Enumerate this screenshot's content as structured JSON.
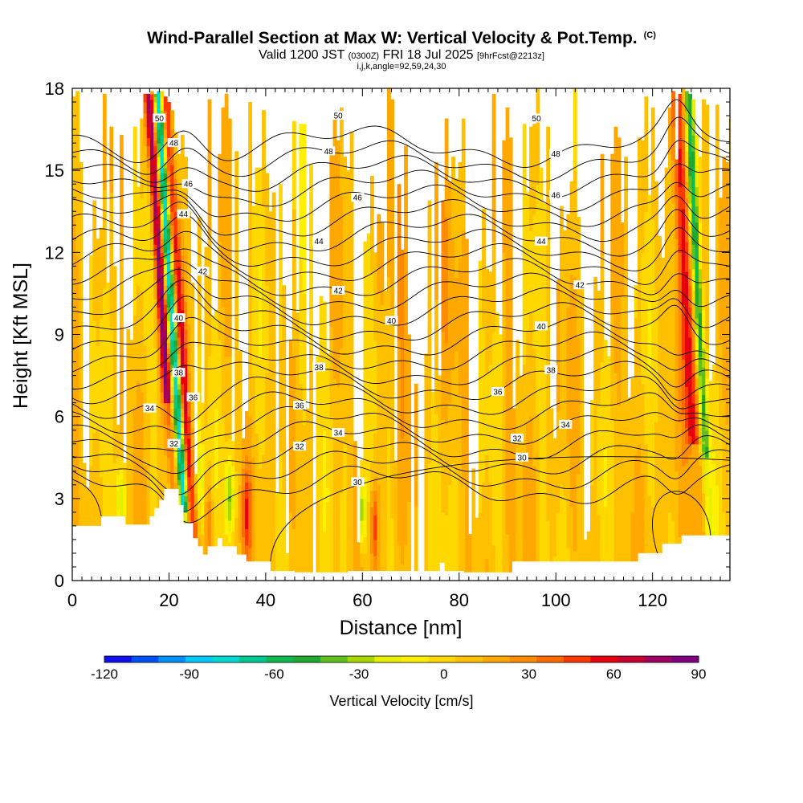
{
  "title": {
    "main": "Wind-Parallel Section at Max W: Vertical Velocity & Pot.Temp.",
    "mark": "(C)",
    "valid_prefix": "Valid 1200 JST",
    "valid_utc": "(0300Z)",
    "valid_date": "FRI 18 Jul 2025",
    "forecast": "[9hrFcst@2213z]",
    "params": "i,j,k,angle=92,59,24,30"
  },
  "chart_data": {
    "type": "heatmap",
    "xlabel": "Distance [nm]",
    "ylabel": "Height [Kft MSL]",
    "xlim": [
      0,
      136
    ],
    "ylim": [
      0,
      18
    ],
    "x_ticks": [
      0,
      20,
      40,
      60,
      80,
      100,
      120
    ],
    "y_ticks": [
      0,
      3,
      6,
      9,
      12,
      15,
      18
    ],
    "colorbar": {
      "label": "Vertical Velocity [cm/s]",
      "tick_labels": [
        -120,
        -90,
        -60,
        -30,
        0,
        30,
        60,
        90
      ],
      "range": [
        -120,
        90
      ],
      "colors": [
        "#1010f0",
        "#0050f8",
        "#0090f8",
        "#00c8f8",
        "#00d8d0",
        "#00c890",
        "#10b850",
        "#20a830",
        "#60c020",
        "#a8d800",
        "#e8f000",
        "#fff000",
        "#ffd800",
        "#ffc000",
        "#ffa800",
        "#ff8c00",
        "#ff6a00",
        "#ff3800",
        "#e80010",
        "#c80030",
        "#a00060",
        "#800080"
      ]
    },
    "theta_labels": [
      {
        "x": 18,
        "y": 16.9,
        "text": "50"
      },
      {
        "x": 55,
        "y": 17.0,
        "text": "50"
      },
      {
        "x": 96,
        "y": 16.9,
        "text": "50"
      },
      {
        "x": 21,
        "y": 16.0,
        "text": "48"
      },
      {
        "x": 53,
        "y": 15.7,
        "text": "48"
      },
      {
        "x": 100,
        "y": 15.6,
        "text": "48"
      },
      {
        "x": 24,
        "y": 14.5,
        "text": "46"
      },
      {
        "x": 59,
        "y": 14.0,
        "text": "46"
      },
      {
        "x": 100,
        "y": 14.1,
        "text": "46"
      },
      {
        "x": 23,
        "y": 13.4,
        "text": "44"
      },
      {
        "x": 51,
        "y": 12.4,
        "text": "44"
      },
      {
        "x": 97,
        "y": 12.4,
        "text": "44"
      },
      {
        "x": 27,
        "y": 11.3,
        "text": "42"
      },
      {
        "x": 55,
        "y": 10.6,
        "text": "42"
      },
      {
        "x": 105,
        "y": 10.8,
        "text": "42"
      },
      {
        "x": 22,
        "y": 9.6,
        "text": "40"
      },
      {
        "x": 66,
        "y": 9.5,
        "text": "40"
      },
      {
        "x": 97,
        "y": 9.3,
        "text": "40"
      },
      {
        "x": 22,
        "y": 7.6,
        "text": "38"
      },
      {
        "x": 51,
        "y": 7.8,
        "text": "38"
      },
      {
        "x": 99,
        "y": 7.7,
        "text": "38"
      },
      {
        "x": 25,
        "y": 6.7,
        "text": "36"
      },
      {
        "x": 47,
        "y": 6.4,
        "text": "36"
      },
      {
        "x": 88,
        "y": 6.9,
        "text": "36"
      },
      {
        "x": 16,
        "y": 6.3,
        "text": "34"
      },
      {
        "x": 55,
        "y": 5.4,
        "text": "34"
      },
      {
        "x": 102,
        "y": 5.7,
        "text": "34"
      },
      {
        "x": 21,
        "y": 5.0,
        "text": "32"
      },
      {
        "x": 47,
        "y": 4.9,
        "text": "32"
      },
      {
        "x": 92,
        "y": 5.2,
        "text": "32"
      },
      {
        "x": 59,
        "y": 3.6,
        "text": "30"
      },
      {
        "x": 93,
        "y": 4.5,
        "text": "30"
      }
    ]
  }
}
